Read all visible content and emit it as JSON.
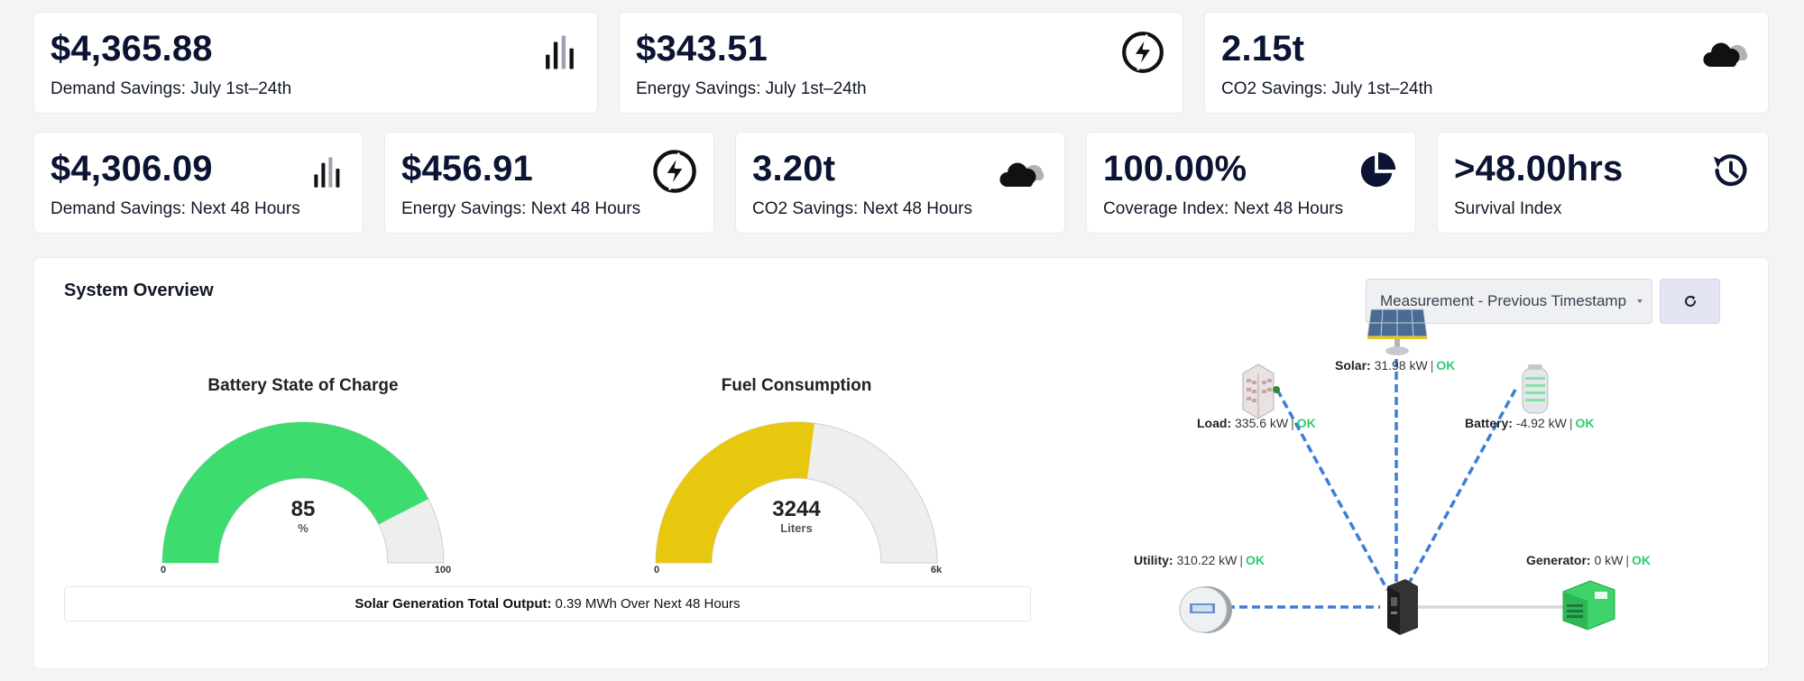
{
  "top_stats": [
    {
      "value": "$4,365.88",
      "label": "Demand Savings: July 1st–24th",
      "icon": "bar-chart-icon"
    },
    {
      "value": "$343.51",
      "label": "Energy Savings: July 1st–24th",
      "icon": "lightning-icon"
    },
    {
      "value": "2.15t",
      "label": "CO2 Savings: July 1st–24th",
      "icon": "cloud-icon"
    }
  ],
  "bottom_stats": [
    {
      "value": "$4,306.09",
      "label": "Demand Savings: Next 48 Hours",
      "icon": "bar-chart-icon"
    },
    {
      "value": "$456.91",
      "label": "Energy Savings: Next 48 Hours",
      "icon": "lightning-icon"
    },
    {
      "value": "3.20t",
      "label": "CO2 Savings: Next 48 Hours",
      "icon": "cloud-icon"
    },
    {
      "value": "100.00%",
      "label": "Coverage Index: Next 48 Hours",
      "icon": "pie-chart-icon"
    },
    {
      "value": ">48.00hrs",
      "label": "Survival Index",
      "icon": "history-icon"
    }
  ],
  "overview": {
    "title": "System Overview",
    "measurement_select": "Measurement - Previous Timestamp",
    "refresh_icon": "refresh-icon"
  },
  "gauges": {
    "battery": {
      "title": "Battery State of Charge",
      "value": 85,
      "value_text": "85",
      "unit": "%",
      "min": 0,
      "max": 100,
      "min_label": "0",
      "max_label": "100",
      "color": "#3ddc6f"
    },
    "fuel": {
      "title": "Fuel Consumption",
      "value": 3244,
      "value_text": "3244",
      "unit": "Liters",
      "min": 0,
      "max": 6000,
      "min_label": "0",
      "max_label": "6k",
      "color": "#e8c80f"
    }
  },
  "solar_output": {
    "label": "Solar Generation Total Output:",
    "value": "0.39 MWh Over Next 48 Hours"
  },
  "nodes": {
    "solar": {
      "name": "Solar:",
      "value": "31.98 kW",
      "sep": "|",
      "status": "OK",
      "icon": "solar-panel-icon"
    },
    "load": {
      "name": "Load:",
      "value": "335.6 kW",
      "sep": "|",
      "status": "OK",
      "icon": "building-icon"
    },
    "battery": {
      "name": "Battery:",
      "value": "-4.92 kW",
      "sep": "|",
      "status": "OK",
      "icon": "battery-icon"
    },
    "utility": {
      "name": "Utility:",
      "value": "310.22 kW",
      "sep": "|",
      "status": "OK",
      "icon": "utility-meter-icon"
    },
    "generator": {
      "name": "Generator:",
      "value": "0 kW",
      "sep": "|",
      "status": "OK",
      "icon": "generator-icon"
    },
    "hub": {
      "icon": "inverter-hub-icon"
    }
  },
  "colors": {
    "ok": "#2ecc71",
    "flow": "#3b7dd8",
    "idle": "#d4d7db",
    "text_dark": "#0b1533"
  }
}
